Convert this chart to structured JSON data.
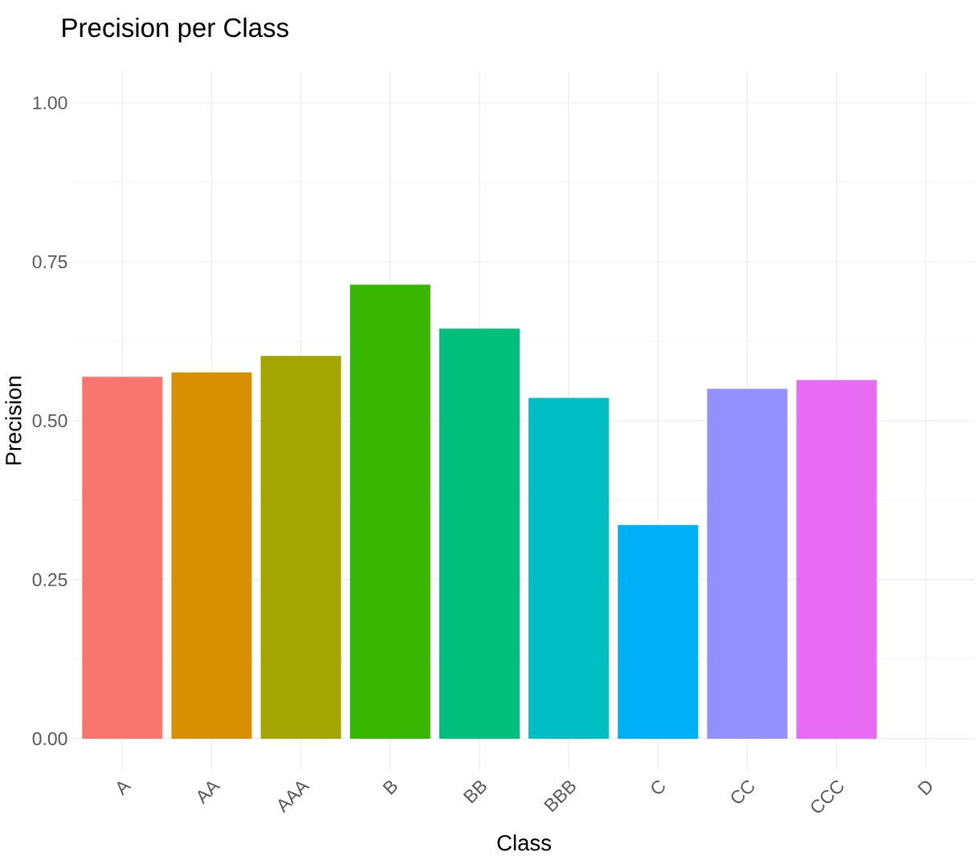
{
  "chart_data": {
    "type": "bar",
    "title": "Precision per Class",
    "xlabel": "Class",
    "ylabel": "Precision",
    "categories": [
      "A",
      "AA",
      "AAA",
      "B",
      "BB",
      "BBB",
      "C",
      "CC",
      "CCC",
      "D"
    ],
    "values": [
      0.569,
      0.576,
      0.602,
      0.714,
      0.645,
      0.536,
      0.336,
      0.55,
      0.564,
      0
    ],
    "colors": [
      "#f8766d",
      "#d89000",
      "#a3a500",
      "#39b600",
      "#00bf7d",
      "#00bfc4",
      "#00b0f6",
      "#9590ff",
      "#e76bf3",
      "#ff62bc"
    ],
    "ylim": [
      -0.05,
      1.05
    ],
    "yticks": [
      {
        "value": 0,
        "label": "0.00"
      },
      {
        "value": 0.25,
        "label": "0.25"
      },
      {
        "value": 0.5,
        "label": "0.50"
      },
      {
        "value": 0.75,
        "label": "0.75"
      },
      {
        "value": 1,
        "label": "1.00"
      }
    ],
    "grid": true
  }
}
